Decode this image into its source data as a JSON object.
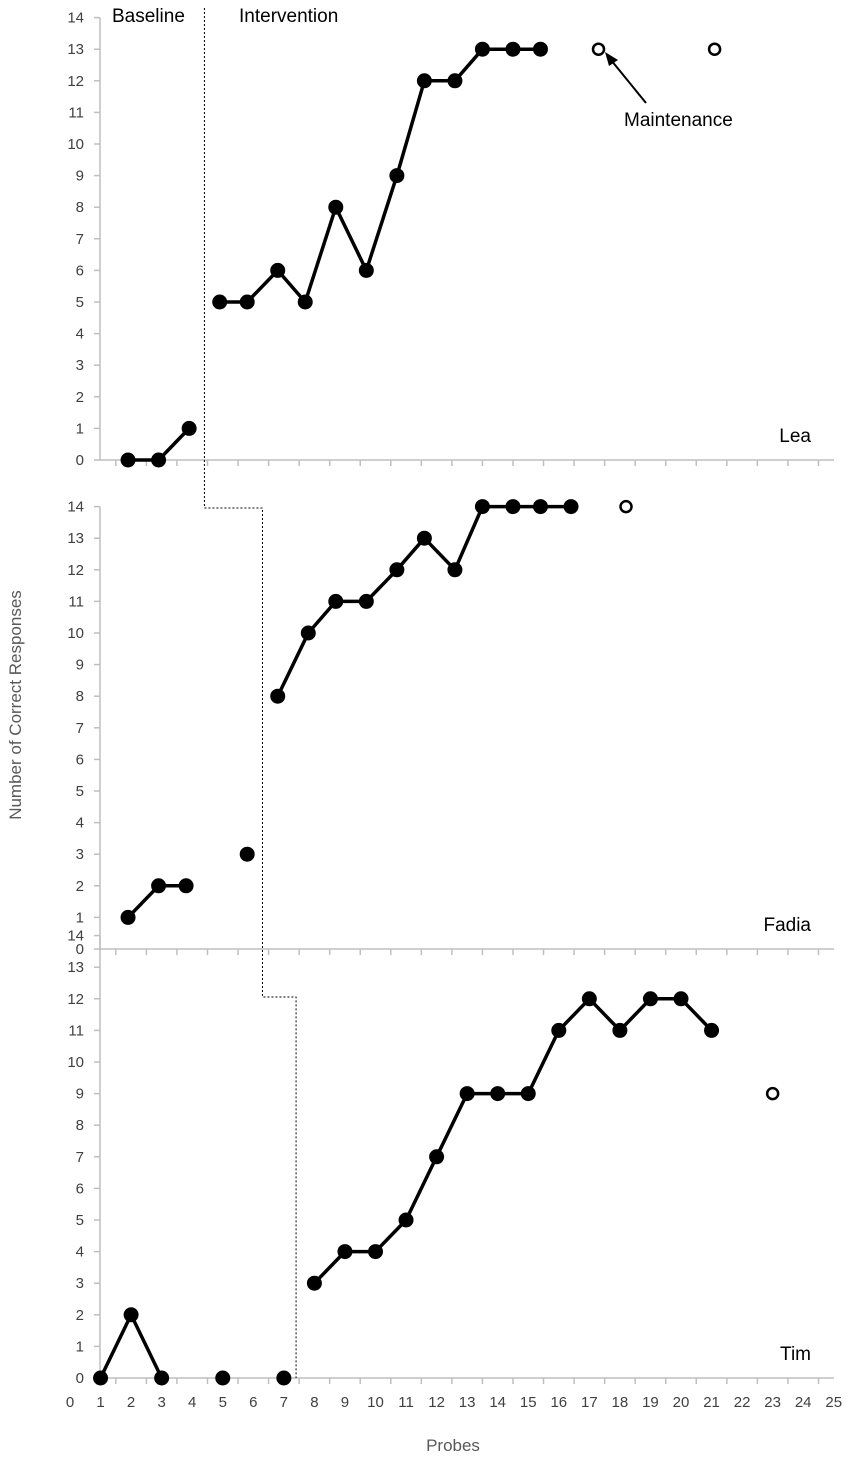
{
  "chart_data": {
    "type": "line",
    "x_label": "Probes",
    "y_label": "Number of Correct Responses",
    "x_ticks": [
      0,
      1,
      2,
      3,
      4,
      5,
      6,
      7,
      8,
      9,
      10,
      11,
      12,
      13,
      14,
      15,
      16,
      17,
      18,
      19,
      20,
      21,
      22,
      23,
      24,
      25
    ],
    "y_ticks": [
      0,
      1,
      2,
      3,
      4,
      5,
      6,
      7,
      8,
      9,
      10,
      11,
      12,
      13,
      14
    ],
    "xlim": [
      0,
      25
    ],
    "ylim": [
      0,
      14
    ],
    "phase_labels": {
      "baseline": "Baseline",
      "intervention": "Intervention"
    },
    "maintenance_label": "Maintenance",
    "panels": [
      {
        "participant": "Lea",
        "phase_change_x": 4.4,
        "baseline": [
          [
            1.9,
            0
          ],
          [
            2.9,
            0
          ],
          [
            3.9,
            1
          ]
        ],
        "intervention": [
          [
            4.9,
            5
          ],
          [
            5.8,
            5
          ],
          [
            6.8,
            6
          ],
          [
            7.7,
            5
          ],
          [
            8.7,
            8
          ],
          [
            9.7,
            6
          ],
          [
            10.7,
            9
          ],
          [
            11.6,
            12
          ],
          [
            12.6,
            12
          ],
          [
            13.5,
            13
          ],
          [
            14.5,
            13
          ],
          [
            15.4,
            13
          ]
        ],
        "maintenance": [
          [
            17.3,
            13
          ],
          [
            21.1,
            13
          ]
        ]
      },
      {
        "participant": "Fadia",
        "phase_change_x": 6.3,
        "baseline_segments": [
          [
            [
              1.9,
              1
            ],
            [
              2.9,
              2
            ],
            [
              3.8,
              2
            ]
          ],
          [
            [
              5.8,
              3
            ]
          ]
        ],
        "intervention": [
          [
            6.8,
            8
          ],
          [
            7.8,
            10
          ],
          [
            8.7,
            11
          ],
          [
            9.7,
            11
          ],
          [
            10.7,
            12
          ],
          [
            11.6,
            13
          ],
          [
            12.6,
            12
          ],
          [
            13.5,
            14
          ],
          [
            14.5,
            14
          ],
          [
            15.4,
            14
          ],
          [
            16.4,
            14
          ]
        ],
        "maintenance": [
          [
            18.2,
            14
          ]
        ]
      },
      {
        "participant": "Tim",
        "phase_change_x": 7.4,
        "baseline_segments": [
          [
            [
              1,
              0
            ],
            [
              2,
              2
            ],
            [
              3,
              0
            ]
          ],
          [
            [
              5,
              0
            ]
          ],
          [
            [
              7,
              0
            ]
          ]
        ],
        "intervention": [
          [
            8,
            3
          ],
          [
            9,
            4
          ],
          [
            10,
            4
          ],
          [
            11,
            5
          ],
          [
            12,
            7
          ],
          [
            13,
            9
          ],
          [
            14,
            9
          ],
          [
            15,
            9
          ],
          [
            16,
            11
          ],
          [
            17,
            12
          ],
          [
            18,
            11
          ],
          [
            19,
            12
          ],
          [
            20,
            12
          ],
          [
            21,
            11
          ]
        ],
        "maintenance": [
          [
            23,
            9
          ]
        ]
      }
    ]
  }
}
